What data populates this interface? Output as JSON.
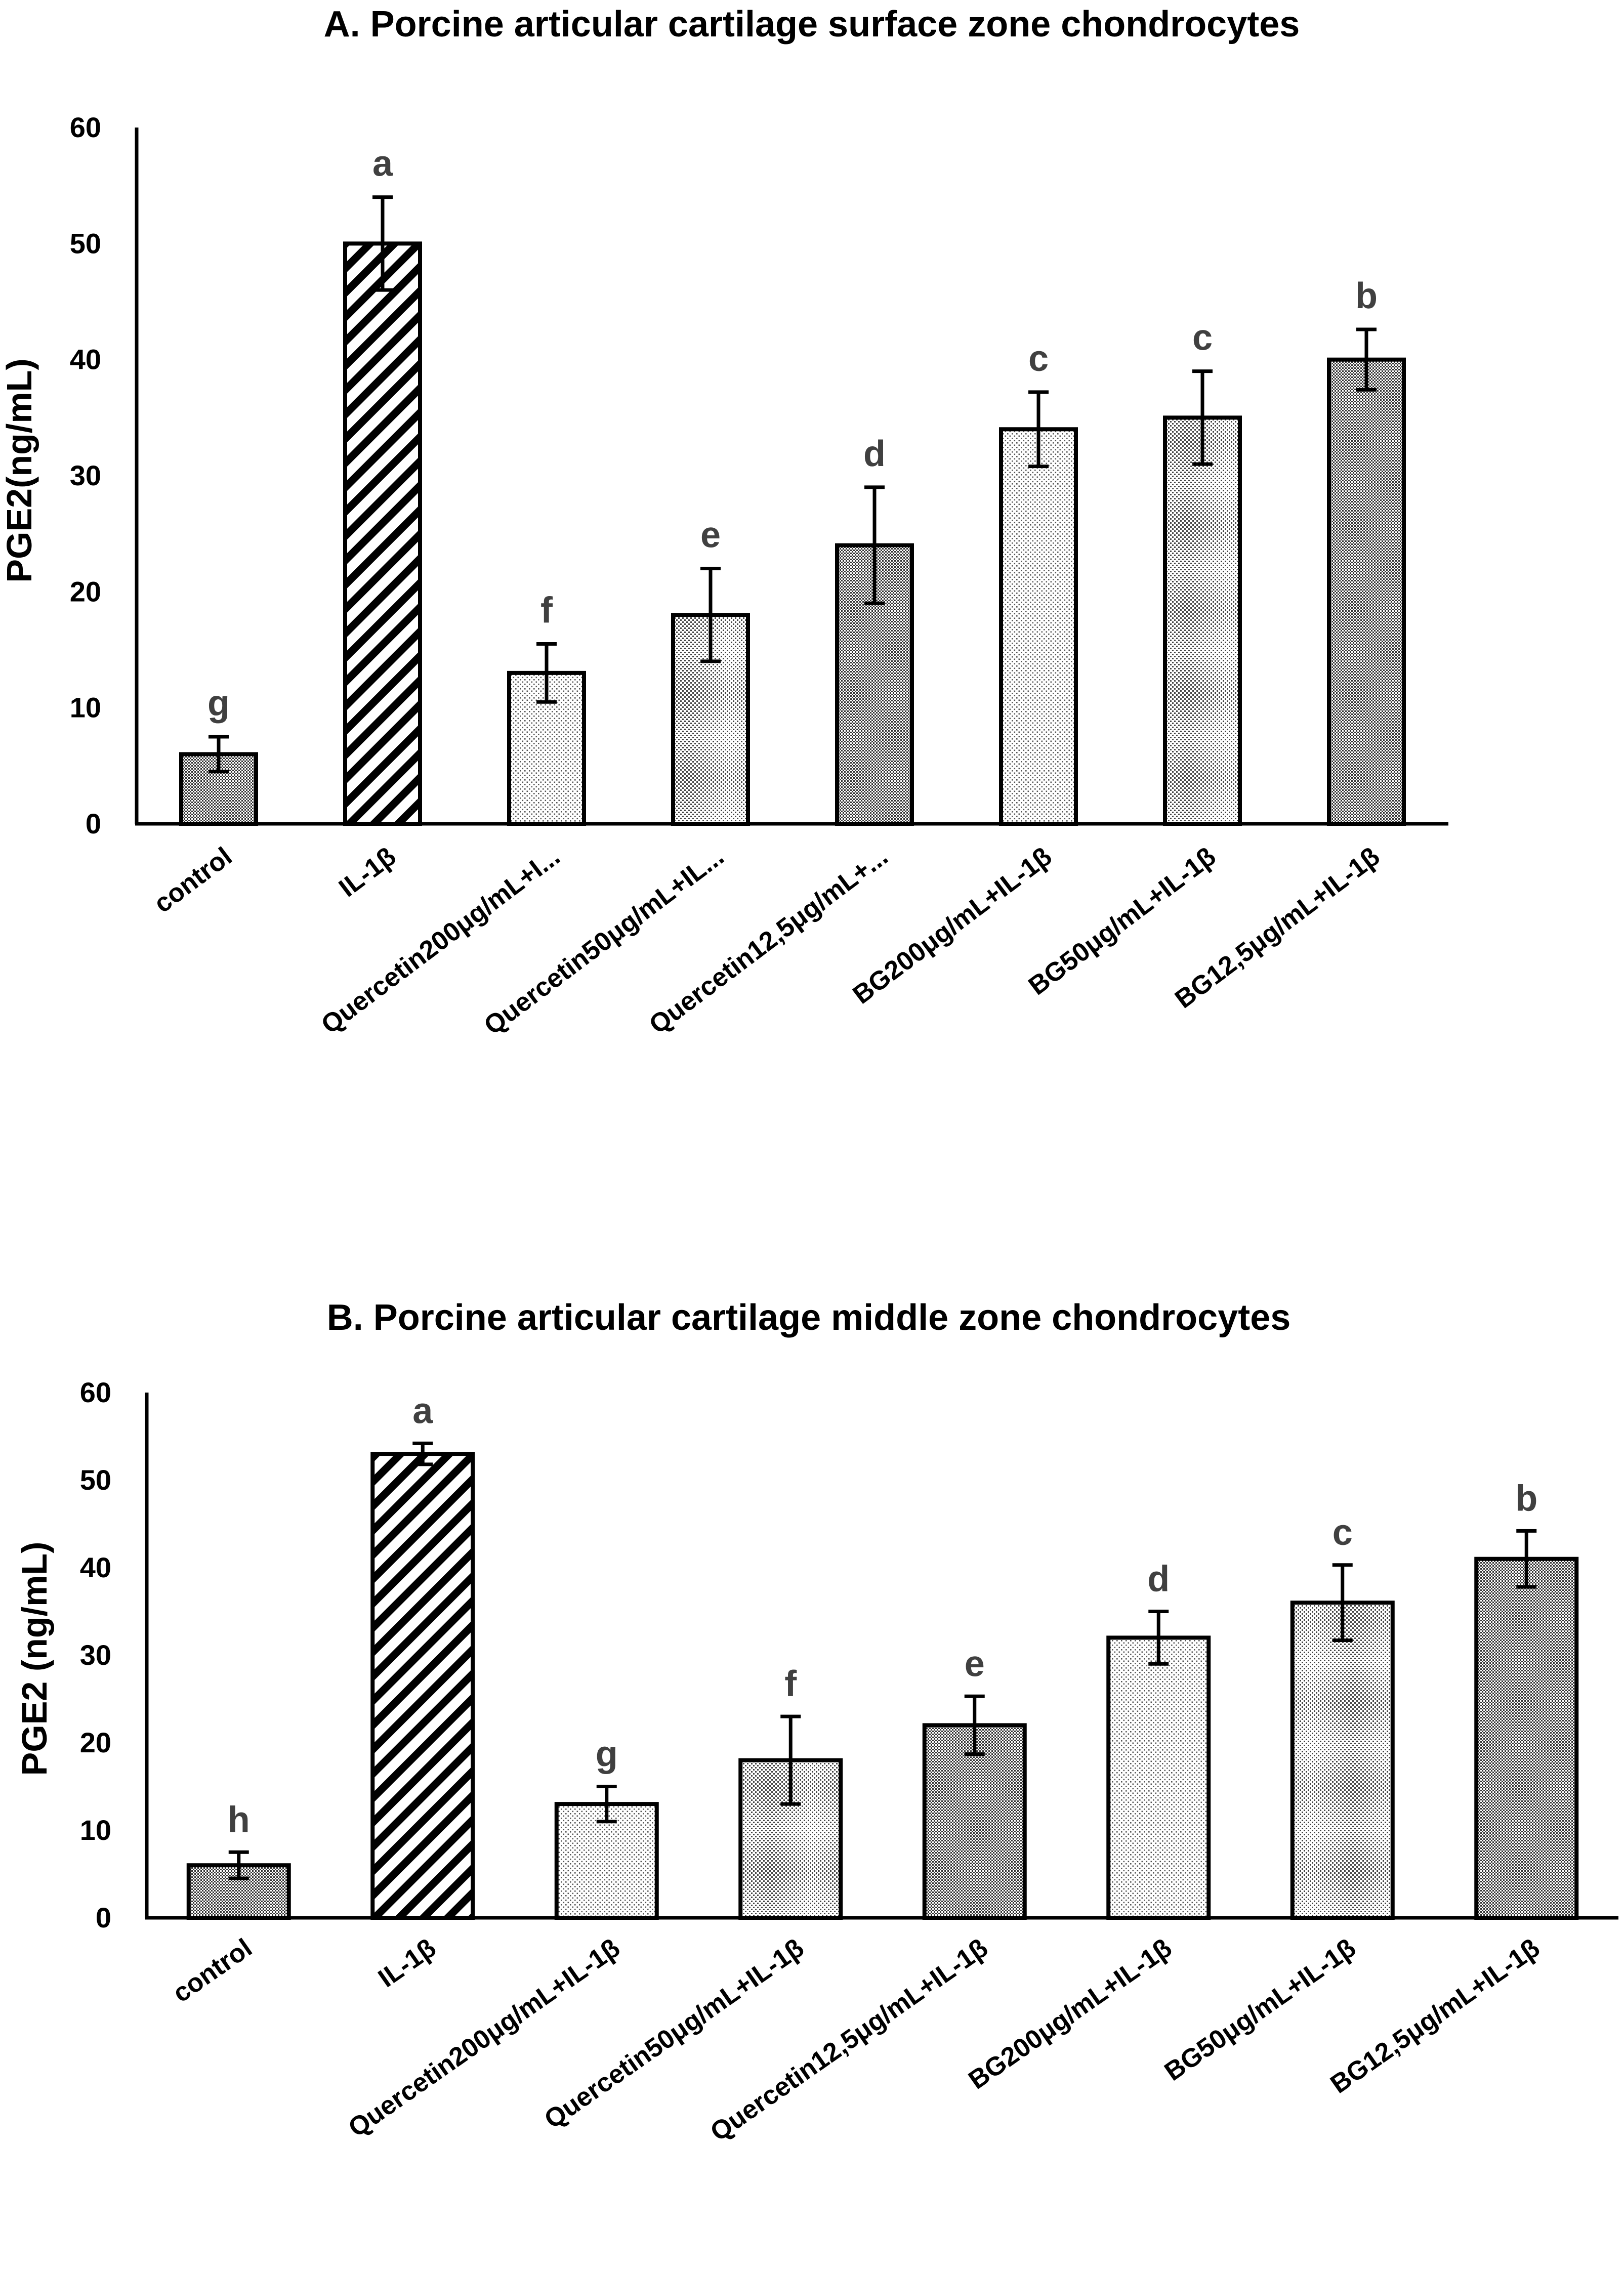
{
  "chart_data": [
    {
      "type": "bar",
      "title": "A.  Porcine articular cartilage surface zone chondrocytes",
      "xlabel": "",
      "ylabel": "PGE2(ng/mL)",
      "ylim": [
        0,
        60
      ],
      "yticks": [
        0,
        10,
        20,
        30,
        40,
        50,
        60
      ],
      "grid": false,
      "categories": [
        "control",
        "IL-1β",
        "Quercetin200μg/mL+I...",
        "Quercetin50μg/mL+IL...",
        "Quercetin12,5μg/mL+...",
        "BG200μg/mL+IL-1β",
        "BG50μg/mL+IL-1β",
        "BG12,5μg/mL+IL-1β"
      ],
      "values": [
        6,
        50,
        13,
        18,
        24,
        34,
        35,
        40
      ],
      "errors": [
        1.5,
        4,
        2.5,
        4,
        5,
        3.2,
        4,
        2.6
      ],
      "significance": [
        "g",
        "a",
        "f",
        "e",
        "d",
        "c",
        "c",
        "b"
      ],
      "patterns": [
        "dense",
        "diagonal",
        "light",
        "medium",
        "dense",
        "light",
        "medium",
        "dense"
      ]
    },
    {
      "type": "bar",
      "title": "B.  Porcine articular cartilage middle zone chondrocytes",
      "xlabel": "",
      "ylabel": "PGE2 (ng/mL)",
      "ylim": [
        0,
        60
      ],
      "yticks": [
        0,
        10,
        20,
        30,
        40,
        50,
        60
      ],
      "grid": false,
      "categories": [
        "control",
        "IL-1β",
        "Quercetin200μg/mL+IL-1β",
        "Quercetin50μg/mL+IL-1β",
        "Quercetin12,5μg/mL+IL-1β",
        "BG200μg/mL+IL-1β",
        "BG50μg/mL+IL-1β",
        "BG12,5μg/mL+IL-1β"
      ],
      "values": [
        6,
        53,
        13,
        18,
        22,
        32,
        36,
        41
      ],
      "errors": [
        1.5,
        1.2,
        2,
        5,
        3.3,
        3,
        4.3,
        3.2
      ],
      "significance": [
        "h",
        "a",
        "g",
        "f",
        "e",
        "d",
        "c",
        "b"
      ],
      "patterns": [
        "dense",
        "diagonal",
        "light",
        "medium",
        "dense",
        "light",
        "medium",
        "dense"
      ]
    }
  ]
}
